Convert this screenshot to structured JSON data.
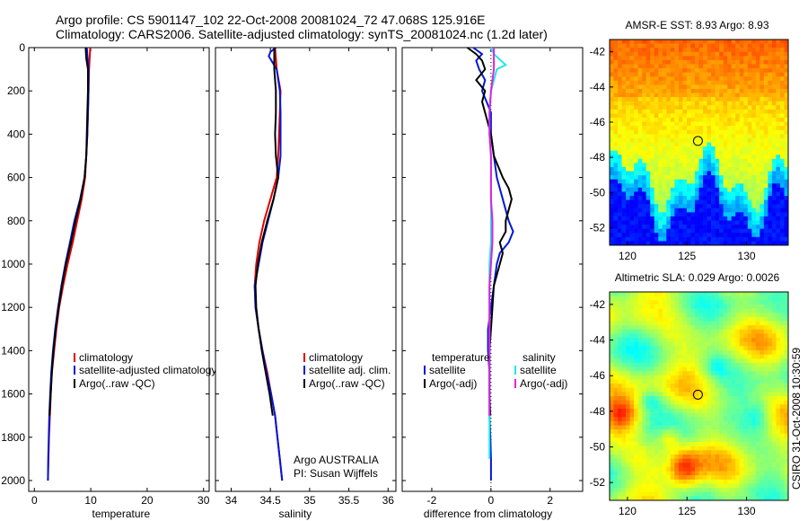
{
  "header": {
    "line1": "Argo profile: CS 5901147_102 22-Oct-2008 20081024_72 47.068S 125.916E",
    "line2": "Climatology: CARS2006. Satellite-adjusted climatology: synTS_20081024.nc (1.2d later)"
  },
  "credit": "CSIRO 31-Oct-2008 10:30:59",
  "colors": {
    "red": "#e00000",
    "blue": "#0018d8",
    "black": "#000000",
    "cyan": "#20e8e8",
    "magenta": "#e020e0"
  },
  "chart_data": [
    {
      "type": "line",
      "id": "temperature",
      "xlabel": "temperature",
      "xlim": [
        -1,
        31
      ],
      "ylim": [
        2050,
        0
      ],
      "xticks": [
        0,
        10,
        20,
        30
      ],
      "yticks": [
        0,
        200,
        400,
        600,
        800,
        1000,
        1200,
        1400,
        1600,
        1800,
        2000
      ],
      "legend": [
        "climatology",
        "satellite-adjusted climatology",
        "Argo(..raw -QC)"
      ],
      "series": [
        {
          "key": "clim",
          "color": "red",
          "depth": [
            0,
            100,
            200,
            300,
            400,
            500,
            600,
            700,
            800,
            900,
            1000,
            1100,
            1200,
            1300,
            1400,
            1500,
            1600,
            1700,
            1800,
            1900,
            2000
          ],
          "values": [
            9.9,
            9.7,
            9.6,
            9.5,
            9.4,
            9.2,
            9.0,
            8.4,
            7.6,
            6.8,
            5.9,
            5.1,
            4.4,
            3.9,
            3.5,
            3.1,
            2.9,
            2.75,
            2.6,
            2.5,
            2.4
          ]
        },
        {
          "key": "sat",
          "color": "blue",
          "depth": [
            0,
            100,
            200,
            300,
            400,
            500,
            600,
            700,
            800,
            900,
            1000,
            1100,
            1200,
            1300,
            1400,
            1500,
            1600,
            1700,
            1800,
            1900,
            2000
          ],
          "values": [
            9.3,
            9.6,
            9.6,
            9.5,
            9.4,
            9.2,
            8.9,
            8.1,
            7.1,
            6.3,
            5.5,
            4.8,
            4.2,
            3.7,
            3.3,
            3.0,
            2.8,
            2.65,
            2.55,
            2.45,
            2.4
          ]
        },
        {
          "key": "argo",
          "color": "black",
          "depth": [
            0,
            50,
            100,
            200,
            300,
            400,
            500,
            600,
            700,
            800,
            900,
            1000,
            1100,
            1200,
            1300,
            1400,
            1500,
            1600,
            1700
          ],
          "values": [
            9.1,
            9.2,
            9.5,
            9.5,
            9.4,
            9.3,
            9.2,
            8.9,
            8.2,
            7.3,
            6.5,
            5.6,
            4.9,
            4.3,
            3.8,
            3.4,
            3.1,
            2.9,
            2.7
          ]
        }
      ]
    },
    {
      "type": "line",
      "id": "salinity",
      "xlabel": "salinity",
      "xlim": [
        33.8,
        36.1
      ],
      "ylim": [
        2050,
        0
      ],
      "xticks": [
        34,
        34.5,
        35,
        35.5,
        36
      ],
      "yticks": [
        0,
        200,
        400,
        600,
        800,
        1000,
        1200,
        1400,
        1600,
        1800,
        2000
      ],
      "legend": [
        "climatology",
        "satellite adj. clim.",
        "Argo(..raw -QC)"
      ],
      "annotation": [
        "Argo AUSTRALIA",
        "PI: Susan Wijffels"
      ],
      "series": [
        {
          "key": "clim",
          "color": "red",
          "depth": [
            0,
            100,
            200,
            300,
            400,
            500,
            600,
            700,
            800,
            900,
            1000,
            1100,
            1200,
            1300,
            1400,
            1500,
            1600,
            1700,
            1800,
            1900,
            2000
          ],
          "values": [
            34.56,
            34.58,
            34.63,
            34.62,
            34.61,
            34.6,
            34.58,
            34.5,
            34.42,
            34.36,
            34.32,
            34.3,
            34.31,
            34.35,
            34.4,
            34.46,
            34.51,
            34.56,
            34.59,
            34.62,
            34.65
          ]
        },
        {
          "key": "sat",
          "color": "blue",
          "depth": [
            0,
            20,
            40,
            100,
            200,
            300,
            400,
            500,
            600,
            700,
            800,
            900,
            1000,
            1100,
            1200,
            1300,
            1400,
            1500,
            1600,
            1700,
            1800,
            1900,
            2000
          ],
          "values": [
            34.57,
            34.5,
            34.48,
            34.58,
            34.62,
            34.63,
            34.63,
            34.63,
            34.6,
            34.54,
            34.47,
            34.4,
            34.35,
            34.3,
            34.31,
            34.35,
            34.4,
            34.45,
            34.51,
            34.56,
            34.59,
            34.62,
            34.65
          ]
        },
        {
          "key": "argo",
          "color": "black",
          "depth": [
            0,
            100,
            200,
            300,
            400,
            500,
            600,
            700,
            800,
            900,
            1000,
            1100,
            1200,
            1300,
            1400,
            1500,
            1600,
            1700
          ],
          "values": [
            34.55,
            34.55,
            34.57,
            34.57,
            34.56,
            34.57,
            34.6,
            34.54,
            34.46,
            34.39,
            34.34,
            34.31,
            34.32,
            34.35,
            34.39,
            34.44,
            34.49,
            34.53
          ]
        }
      ]
    },
    {
      "type": "line",
      "id": "difference",
      "xlabel": "difference from climatology",
      "xlim": [
        -3,
        3.1
      ],
      "ylim": [
        2050,
        0
      ],
      "xticks": [
        -2,
        0,
        2
      ],
      "yticks": [
        0,
        200,
        400,
        600,
        800,
        1000,
        1200,
        1400,
        1600,
        1800,
        2000
      ],
      "legend_left": {
        "title": "temperature",
        "items": [
          "satellite",
          "Argo(-adj)"
        ]
      },
      "legend_right": {
        "title": "salinity",
        "items": [
          "satellite",
          "Argo(-adj)"
        ]
      },
      "series": [
        {
          "key": "t_sat",
          "color": "blue",
          "depth": [
            0,
            30,
            60,
            100,
            150,
            200,
            300,
            400,
            500,
            600,
            700,
            800,
            850,
            900,
            950,
            1000,
            1100,
            1200,
            1300,
            1400,
            1500,
            1600,
            1700,
            1800,
            1900,
            2000
          ],
          "values": [
            -0.6,
            -0.3,
            -0.5,
            -0.4,
            -0.2,
            -0.3,
            0.0,
            0.0,
            0.1,
            0.2,
            0.4,
            0.6,
            0.75,
            0.6,
            0.3,
            0.2,
            0.1,
            0.0,
            -0.1,
            -0.1,
            -0.05,
            -0.05,
            -0.05,
            -0.02,
            0.0,
            0.0
          ]
        },
        {
          "key": "t_argo",
          "color": "black",
          "depth": [
            0,
            30,
            60,
            100,
            150,
            200,
            250,
            300,
            400,
            500,
            600,
            650,
            700,
            750,
            800,
            850,
            900,
            950,
            1000,
            1100,
            1200,
            1300,
            1400,
            1500,
            1600,
            1700
          ],
          "values": [
            -0.8,
            -0.5,
            -0.3,
            -0.2,
            -0.5,
            -0.2,
            -0.3,
            -0.2,
            0.0,
            0.1,
            0.4,
            0.6,
            0.7,
            0.6,
            0.5,
            0.5,
            0.3,
            0.4,
            0.3,
            0.1,
            0.05,
            0.0,
            -0.05,
            -0.05,
            -0.05,
            -0.02
          ]
        },
        {
          "key": "s_sat",
          "color": "cyan",
          "depth": [
            0,
            30,
            80,
            100,
            200,
            300,
            400,
            500,
            600,
            700,
            800,
            900,
            1000,
            1100,
            1200,
            1300,
            1400,
            1500,
            1600,
            1700,
            1800,
            1900
          ],
          "values": [
            0.0,
            0.1,
            0.5,
            0.2,
            0.0,
            -0.05,
            -0.05,
            0.0,
            0.0,
            0.0,
            0.0,
            0.0,
            -0.05,
            -0.05,
            -0.05,
            -0.05,
            -0.05,
            -0.05,
            -0.05,
            -0.05,
            -0.05,
            -0.05
          ]
        },
        {
          "key": "s_argo",
          "color": "magenta",
          "depth": [
            0,
            100,
            200,
            300,
            400,
            500,
            600,
            700,
            800,
            900,
            1000,
            1100,
            1200,
            1300,
            1400,
            1500,
            1600,
            1700
          ],
          "values": [
            0.1,
            0.1,
            0.0,
            -0.05,
            -0.05,
            0.0,
            0.0,
            0.0,
            0.05,
            0.05,
            0.0,
            -0.05,
            -0.05,
            -0.05,
            -0.05,
            -0.05,
            -0.05,
            -0.05
          ]
        }
      ]
    },
    {
      "type": "heatmap",
      "id": "sst",
      "title": "AMSR-E SST: 8.93 Argo: 8.93",
      "xlim": [
        118.5,
        133.5
      ],
      "ylim": [
        -53,
        -41.3
      ],
      "xticks": [
        120,
        125,
        130
      ],
      "yticks": [
        -42,
        -44,
        -46,
        -48,
        -50,
        -52
      ],
      "marker": {
        "lon": 125.916,
        "lat": -47.068
      }
    },
    {
      "type": "heatmap",
      "id": "sla",
      "title": "Altimetric SLA: 0.029 Argo: 0.0026",
      "xlim": [
        118.5,
        133.5
      ],
      "ylim": [
        -53,
        -41.3
      ],
      "xticks": [
        120,
        125,
        130
      ],
      "yticks": [
        -42,
        -44,
        -46,
        -48,
        -50,
        -52
      ],
      "marker": {
        "lon": 125.916,
        "lat": -47.068
      }
    }
  ]
}
